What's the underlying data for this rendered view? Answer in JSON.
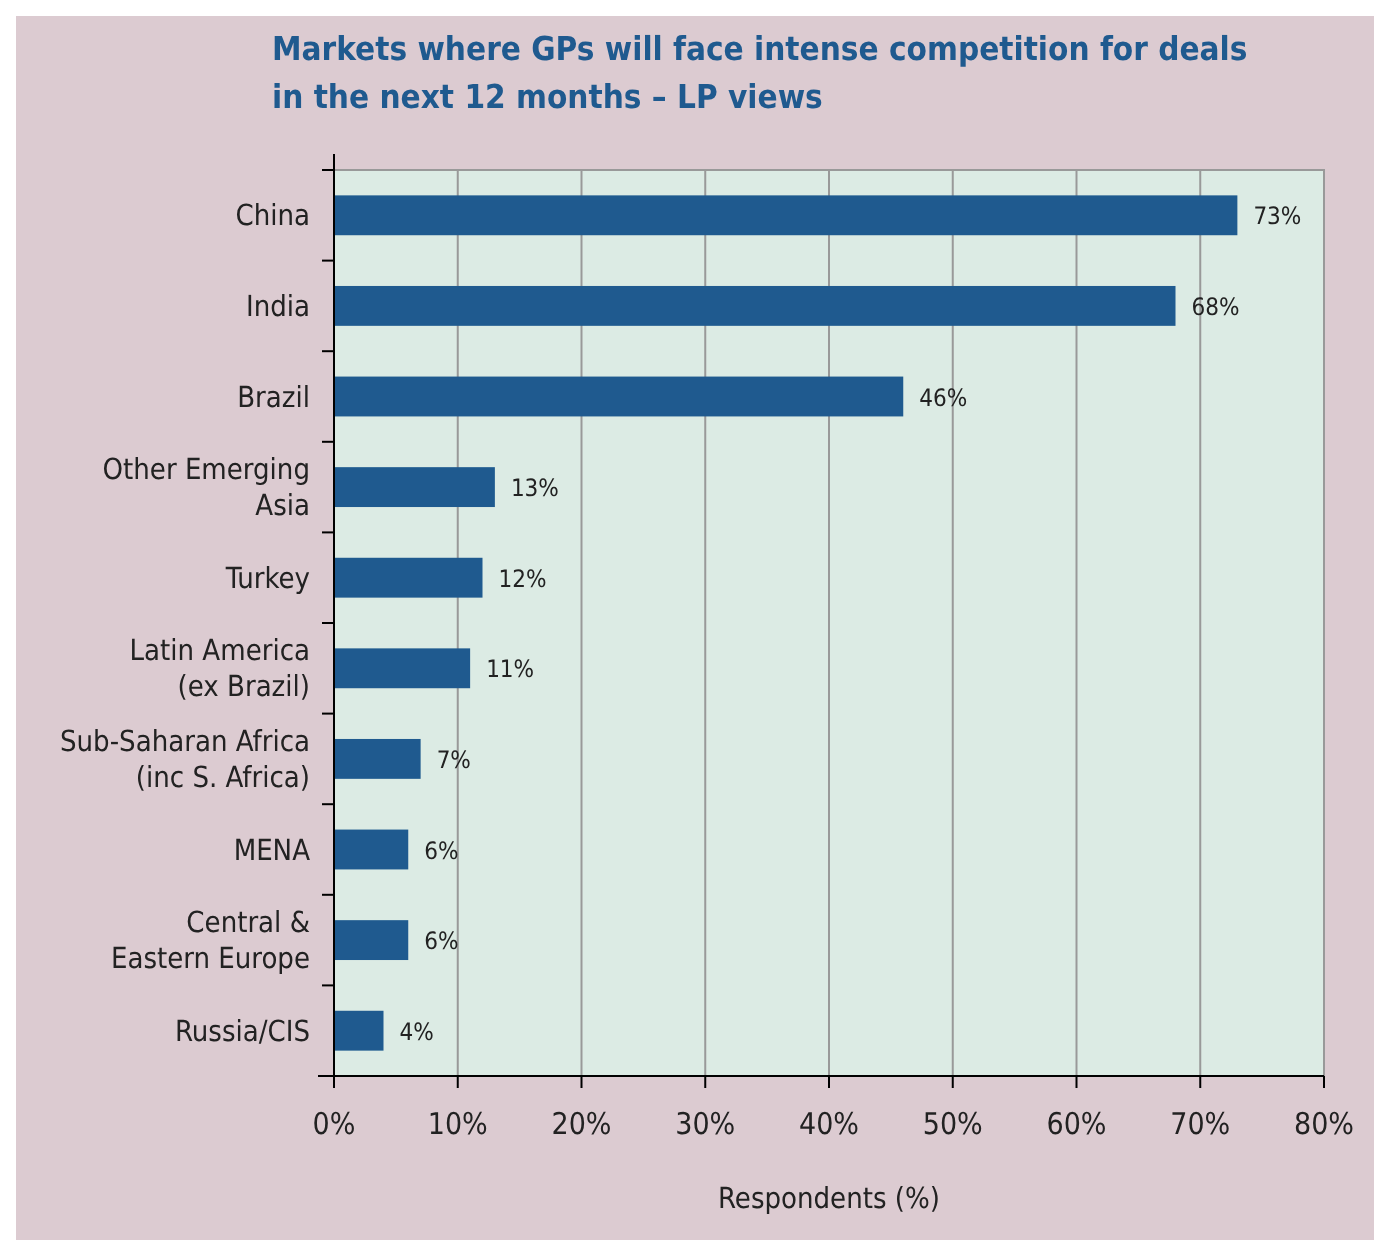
{
  "chart_data": {
    "type": "bar",
    "orientation": "horizontal",
    "title": "Markets where GPs will face intense competition for deals\nin the next 12 months – LP views",
    "xlabel": "Respondents (%)",
    "categories": [
      "China",
      "India",
      "Brazil",
      "Other Emerging\nAsia",
      "Turkey",
      "Latin America\n(ex Brazil)",
      "Sub-Saharan Africa\n(inc S. Africa)",
      "MENA",
      "Central &\nEastern Europe",
      "Russia/CIS"
    ],
    "values": [
      73,
      68,
      46,
      13,
      12,
      11,
      7,
      6,
      6,
      4
    ],
    "value_labels": [
      "73%",
      "68%",
      "46%",
      "13%",
      "12%",
      "11%",
      "7%",
      "6%",
      "6%",
      "4%"
    ],
    "color": "#1f5a8f",
    "xlim": [
      0,
      80
    ],
    "xticks": [
      {
        "value": 0,
        "label": "0%"
      },
      {
        "value": 10,
        "label": "10%"
      },
      {
        "value": 20,
        "label": "20%"
      },
      {
        "value": 30,
        "label": "30%"
      },
      {
        "value": 40,
        "label": "40%"
      },
      {
        "value": 50,
        "label": "50%"
      },
      {
        "value": 60,
        "label": "60%"
      },
      {
        "value": 70,
        "label": "70%"
      },
      {
        "value": 80,
        "label": "80%"
      }
    ],
    "grid": "x"
  }
}
